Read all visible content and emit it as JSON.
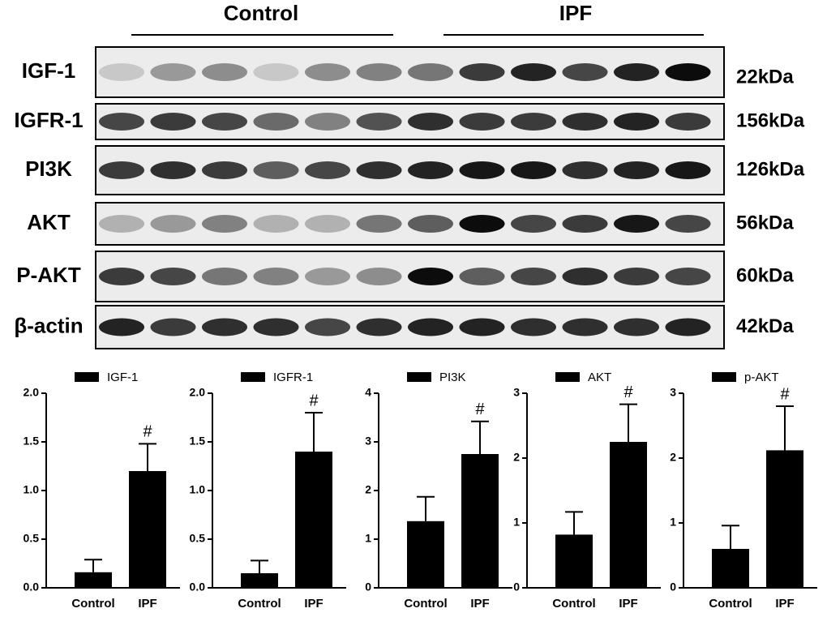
{
  "blot": {
    "groups": [
      "Control",
      "IPF"
    ],
    "rows": [
      {
        "label": "IGF-1",
        "size": "22kDa"
      },
      {
        "label": "IGFR-1",
        "size": "156kDa"
      },
      {
        "label": "PI3K",
        "size": "126kDa"
      },
      {
        "label": "AKT",
        "size": "56kDa"
      },
      {
        "label": "P-AKT",
        "size": "60kDa"
      },
      {
        "label": "β-actin",
        "size": "42kDa"
      }
    ]
  },
  "chart_data": [
    {
      "type": "bar",
      "categories": [
        "Control",
        "IPF"
      ],
      "series": [
        {
          "name": "IGF-1",
          "color": "#000000",
          "values": [
            0.16,
            1.2
          ],
          "errors": [
            0.13,
            0.28
          ]
        }
      ],
      "annotation": "#",
      "ylim": [
        0,
        2
      ],
      "yticks": [
        {
          "value": 0,
          "label": "0.0"
        },
        0.5,
        {
          "value": 1,
          "label": "1.0"
        },
        1.5,
        {
          "value": 2,
          "label": "2.0"
        }
      ]
    },
    {
      "type": "bar",
      "categories": [
        "Control",
        "IPF"
      ],
      "series": [
        {
          "name": "IGFR-1",
          "color": "#000000",
          "values": [
            0.15,
            1.4
          ],
          "errors": [
            0.13,
            0.4
          ]
        }
      ],
      "annotation": "#",
      "ylim": [
        0,
        2
      ],
      "yticks": [
        {
          "value": 0,
          "label": "0.0"
        },
        0.5,
        {
          "value": 1,
          "label": "1.0"
        },
        1.5,
        {
          "value": 2,
          "label": "2.0"
        }
      ]
    },
    {
      "type": "bar",
      "categories": [
        "Control",
        "IPF"
      ],
      "series": [
        {
          "name": "PI3K",
          "color": "#000000",
          "values": [
            1.37,
            2.75
          ],
          "errors": [
            0.5,
            0.67
          ]
        }
      ],
      "annotation": "#",
      "ylim": [
        0,
        4
      ],
      "yticks": [
        0,
        1,
        2,
        3,
        4
      ]
    },
    {
      "type": "bar",
      "categories": [
        "Control",
        "IPF"
      ],
      "series": [
        {
          "name": "AKT",
          "color": "#000000",
          "values": [
            0.82,
            2.25
          ],
          "errors": [
            0.35,
            0.58
          ]
        }
      ],
      "annotation": "#",
      "ylim": [
        0,
        3
      ],
      "yticks": [
        0,
        1,
        2,
        3
      ]
    },
    {
      "type": "bar",
      "categories": [
        "Control",
        "IPF"
      ],
      "series": [
        {
          "name": "p-AKT",
          "color": "#000000",
          "values": [
            0.6,
            2.12
          ],
          "errors": [
            0.36,
            0.68
          ]
        }
      ],
      "annotation": "#",
      "ylim": [
        0,
        3
      ],
      "yticks": [
        0,
        1,
        2,
        3
      ]
    }
  ]
}
